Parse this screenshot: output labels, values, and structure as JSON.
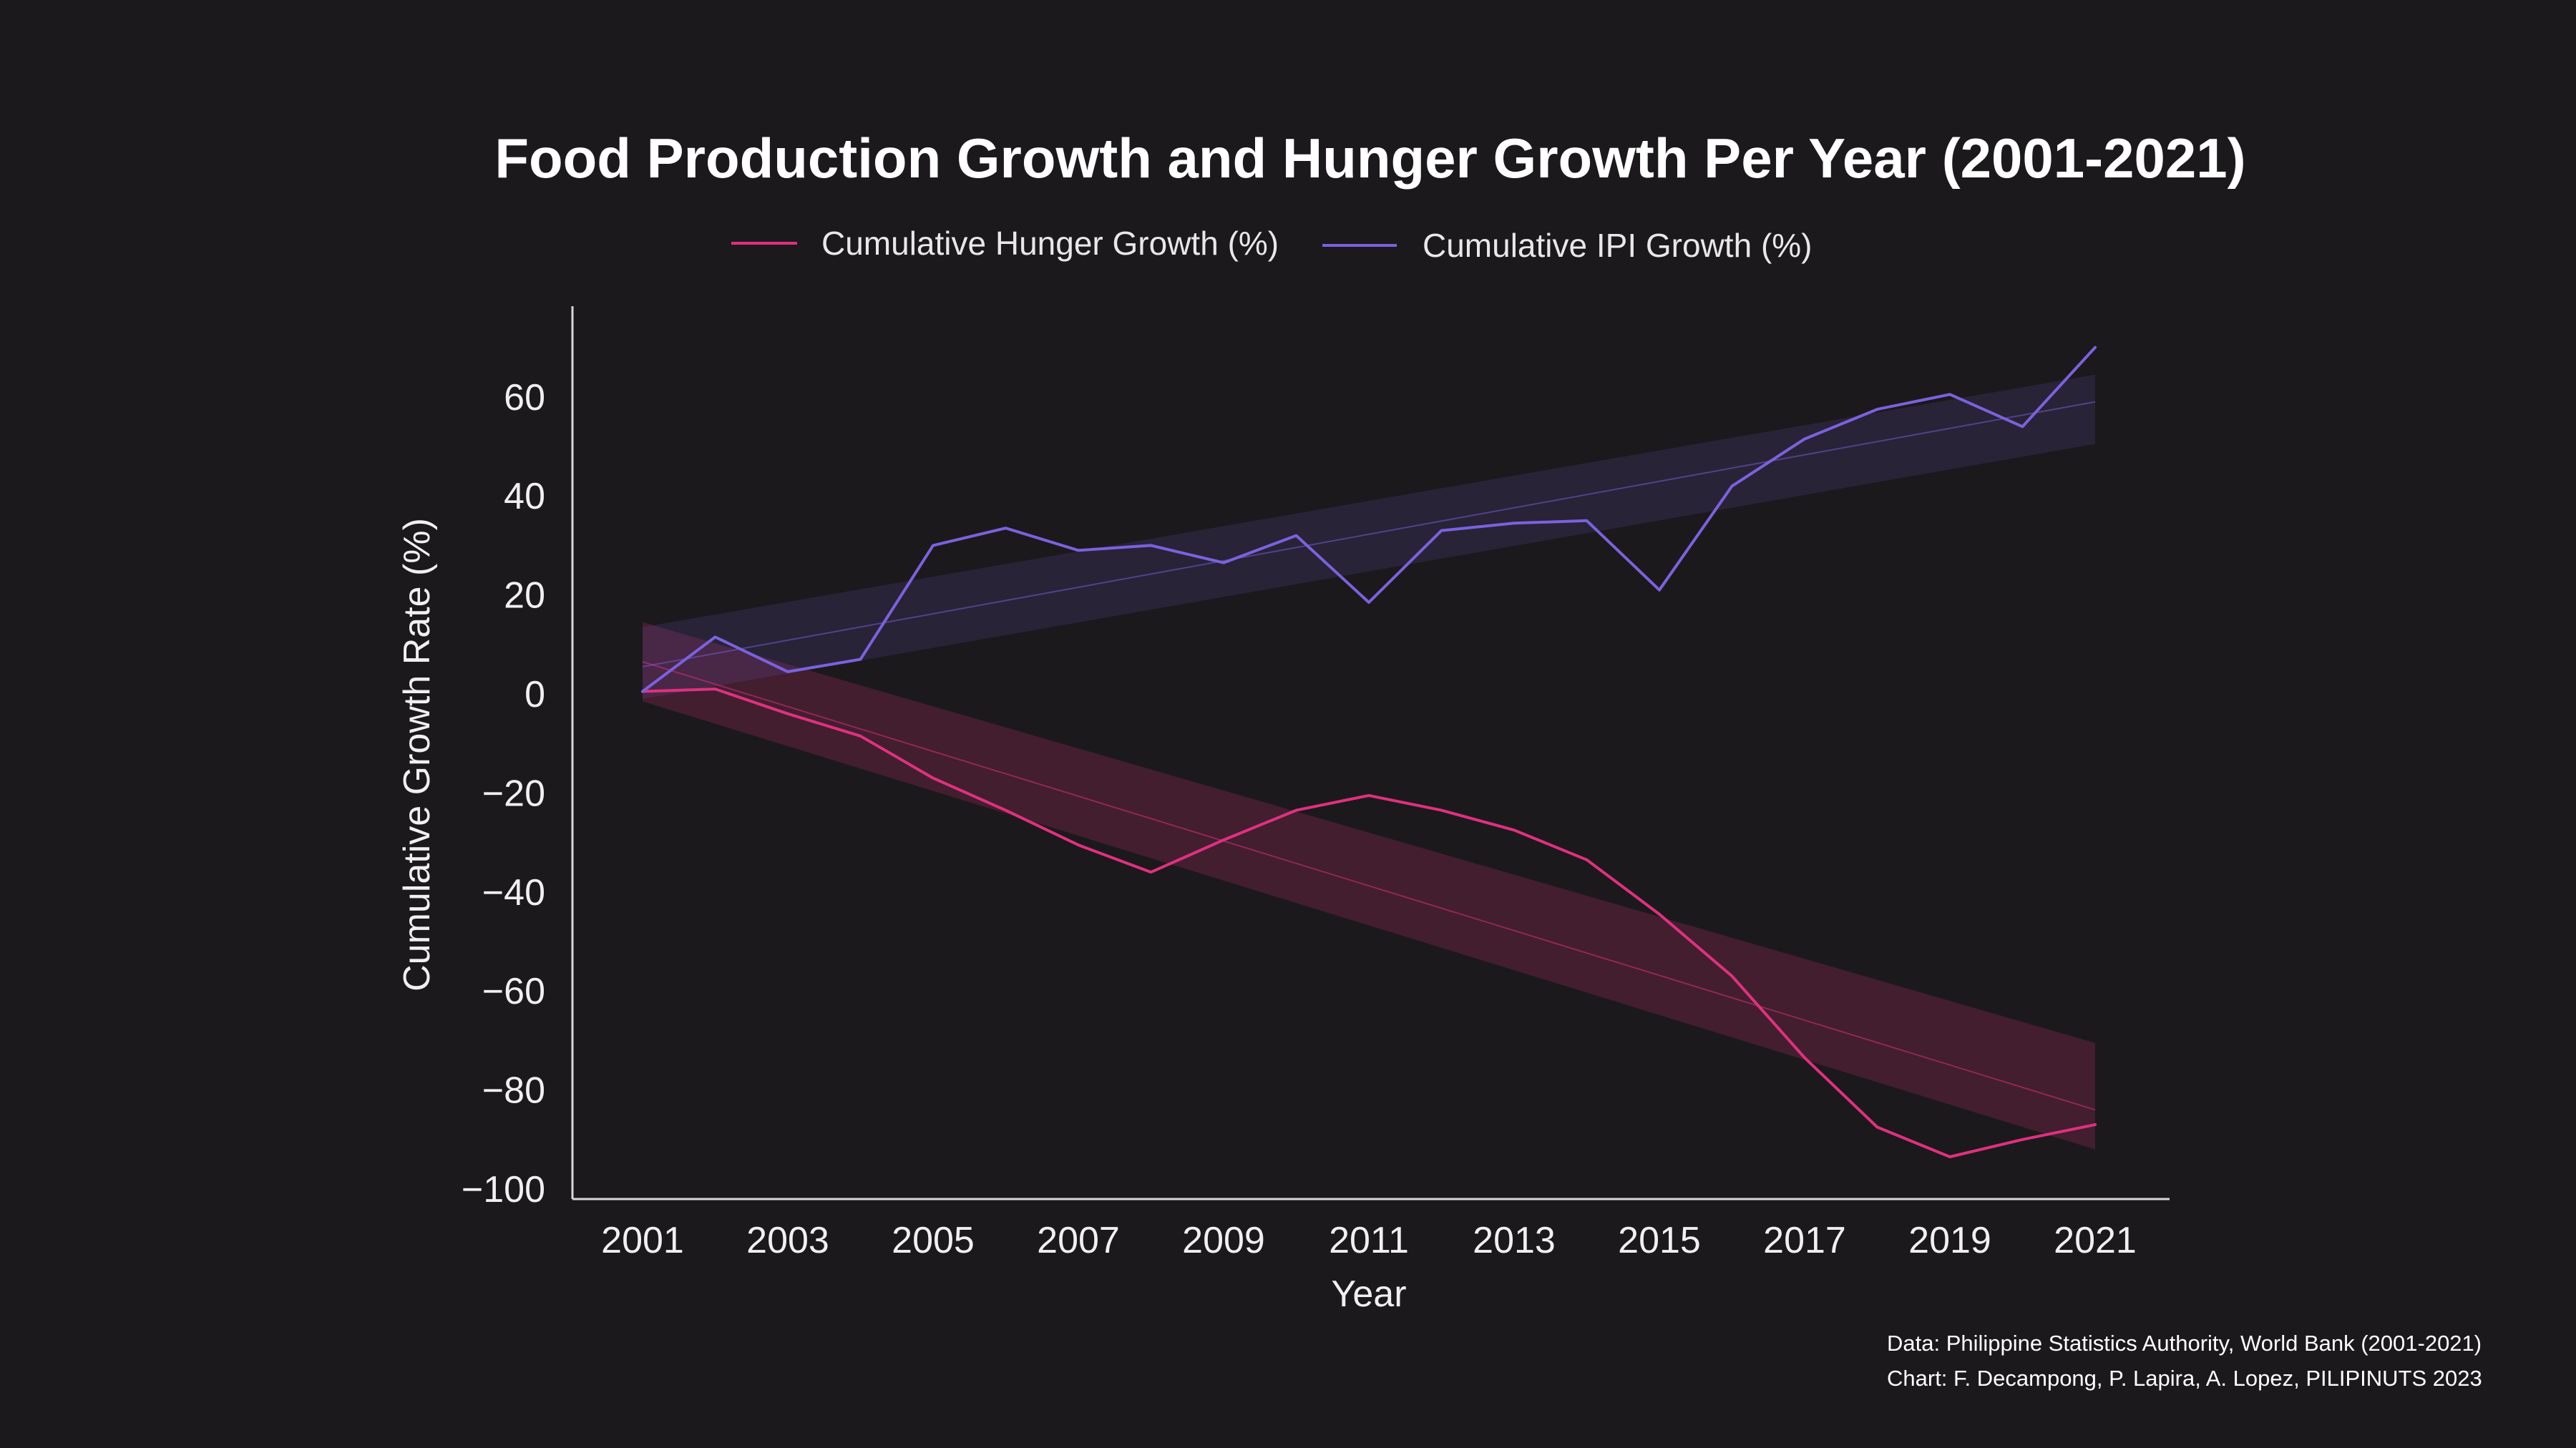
{
  "chart_data": {
    "type": "line",
    "title": "Food Production Growth and Hunger Growth Per Year (2001-2021)",
    "xlabel": "Year",
    "ylabel": "Cumulative Growth Rate (%)",
    "xlim": [
      2000,
      2022
    ],
    "ylim": [
      -100,
      78
    ],
    "x_ticks": [
      "2001",
      "2003",
      "2005",
      "2007",
      "2009",
      "2011",
      "2013",
      "2015",
      "2017",
      "2019",
      "2021"
    ],
    "y_ticks": [
      "60",
      "40",
      "20",
      "0",
      "−20",
      "−40",
      "−60",
      "−80",
      "−100"
    ],
    "legend_position": "top",
    "grid": false,
    "x": [
      2001,
      2002,
      2003,
      2004,
      2005,
      2006,
      2007,
      2008,
      2009,
      2010,
      2011,
      2012,
      2013,
      2014,
      2015,
      2016,
      2017,
      2018,
      2019,
      2020,
      2021
    ],
    "series": [
      {
        "name": "Cumulative Hunger Growth (%)",
        "color": "#e0307f",
        "values": [
          0.5,
          1,
          -4,
          -8.5,
          -17,
          -23.5,
          -30.5,
          -36,
          -29.5,
          -23.5,
          -20.5,
          -23.5,
          -27.5,
          -33.5,
          -44.5,
          -57,
          -73.5,
          -87.5,
          -93.5,
          -90,
          -87
        ],
        "trend": {
          "start": 6.5,
          "end": -84
        },
        "band": {
          "start_low": -1.5,
          "start_high": 14.5,
          "end_low": -92,
          "end_high": -70.5
        }
      },
      {
        "name": "Cumulative IPI Growth (%)",
        "color": "#7a62de",
        "values": [
          0.5,
          11.5,
          4.5,
          7,
          30,
          33.5,
          29,
          30,
          26.5,
          32,
          18.5,
          33,
          34.5,
          35,
          21,
          42,
          51.5,
          57.5,
          60.5,
          54,
          70
        ],
        "trend": {
          "start": 5.5,
          "end": 59
        },
        "band": {
          "start_low": -1,
          "start_high": 13.5,
          "end_low": 50.5,
          "end_high": 64.5
        }
      }
    ],
    "credits": [
      "Data:  Philippine Statistics Authority, World Bank (2001-2021)",
      "Chart: F. Decampong, P. Lapira, A. Lopez, PILIPINUTS 2023"
    ]
  }
}
